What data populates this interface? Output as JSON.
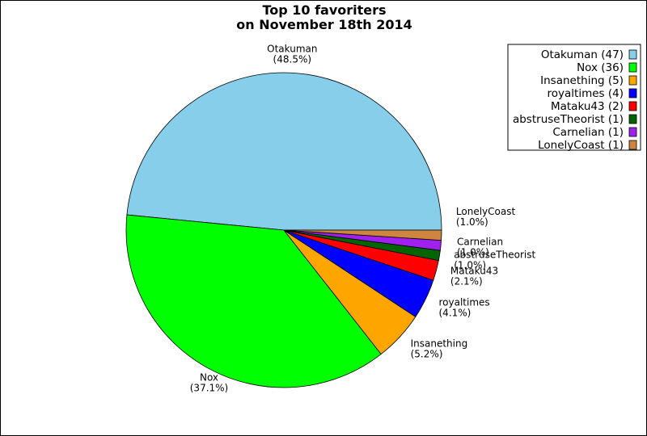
{
  "chart_data": {
    "type": "pie",
    "title": "Top 10 favoriters",
    "subtitle": "on November 18th 2014",
    "legend_position": "top-right",
    "slices": [
      {
        "name": "Otakuman",
        "value": 47,
        "percent": "48.5%",
        "legend": "Otakuman (47)",
        "color": "#87ceeb"
      },
      {
        "name": "Nox",
        "value": 36,
        "percent": "37.1%",
        "legend": "Nox (36)",
        "color": "#00ff00"
      },
      {
        "name": "Insanething",
        "value": 5,
        "percent": "5.2%",
        "legend": "Insanething (5)",
        "color": "#ffa500"
      },
      {
        "name": "royaltimes",
        "value": 4,
        "percent": "4.1%",
        "legend": "royaltimes (4)",
        "color": "#0000ff"
      },
      {
        "name": "Mataku43",
        "value": 2,
        "percent": "2.1%",
        "legend": "Mataku43 (2)",
        "color": "#ff0000"
      },
      {
        "name": "abstruseTheorist",
        "value": 1,
        "percent": "1.0%",
        "legend": "abstruseTheorist (1)",
        "color": "#006400"
      },
      {
        "name": "Carnelian",
        "value": 1,
        "percent": "1.0%",
        "legend": "Carnelian (1)",
        "color": "#a020f0"
      },
      {
        "name": "LonelyCoast",
        "value": 1,
        "percent": "1.0%",
        "legend": "LonelyCoast (1)",
        "color": "#cd853f"
      }
    ]
  }
}
